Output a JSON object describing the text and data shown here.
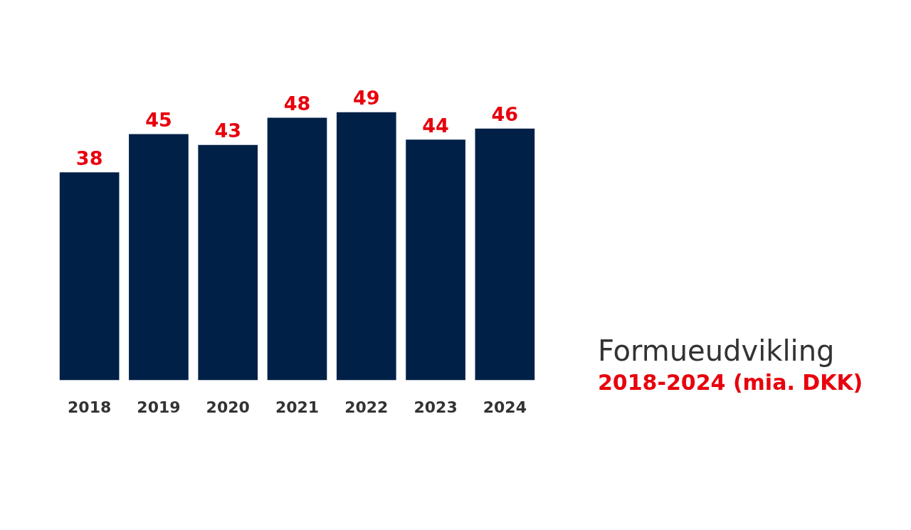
{
  "chart_data": {
    "type": "bar",
    "title": "Formueudvikling",
    "subtitle": "2018-2024 (mia. DKK)",
    "categories": [
      "2018",
      "2019",
      "2020",
      "2021",
      "2022",
      "2023",
      "2024"
    ],
    "values": [
      38,
      45,
      43,
      48,
      49,
      44,
      46
    ],
    "color": "#002047",
    "data_labels": true,
    "grid": false,
    "legend": false,
    "tick_labels": "x"
  }
}
